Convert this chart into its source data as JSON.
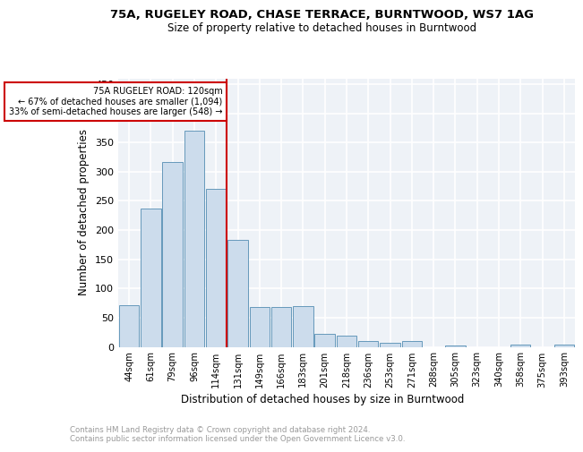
{
  "title1": "75A, RUGELEY ROAD, CHASE TERRACE, BURNTWOOD, WS7 1AG",
  "title2": "Size of property relative to detached houses in Burntwood",
  "xlabel": "Distribution of detached houses by size in Burntwood",
  "ylabel": "Number of detached properties",
  "categories": [
    "44sqm",
    "61sqm",
    "79sqm",
    "96sqm",
    "114sqm",
    "131sqm",
    "149sqm",
    "166sqm",
    "183sqm",
    "201sqm",
    "218sqm",
    "236sqm",
    "253sqm",
    "271sqm",
    "288sqm",
    "305sqm",
    "323sqm",
    "340sqm",
    "358sqm",
    "375sqm",
    "393sqm"
  ],
  "values": [
    72,
    237,
    317,
    370,
    270,
    183,
    68,
    68,
    70,
    22,
    19,
    10,
    7,
    10,
    0,
    3,
    0,
    0,
    4,
    0,
    4
  ],
  "bar_color": "#ccdcec",
  "bar_edge_color": "#6699bb",
  "vline_color": "#cc0000",
  "annotation_box_color": "#cc0000",
  "annotation_title": "75A RUGELEY ROAD: 120sqm",
  "annotation_line1": "← 67% of detached houses are smaller (1,094)",
  "annotation_line2": "33% of semi-detached houses are larger (548) →",
  "vline_x": 4.5,
  "ylim": [
    0,
    460
  ],
  "yticks": [
    0,
    50,
    100,
    150,
    200,
    250,
    300,
    350,
    400,
    450
  ],
  "background_color": "#eef2f7",
  "grid_color": "#ffffff",
  "footer": "Contains HM Land Registry data © Crown copyright and database right 2024.\nContains public sector information licensed under the Open Government Licence v3.0."
}
